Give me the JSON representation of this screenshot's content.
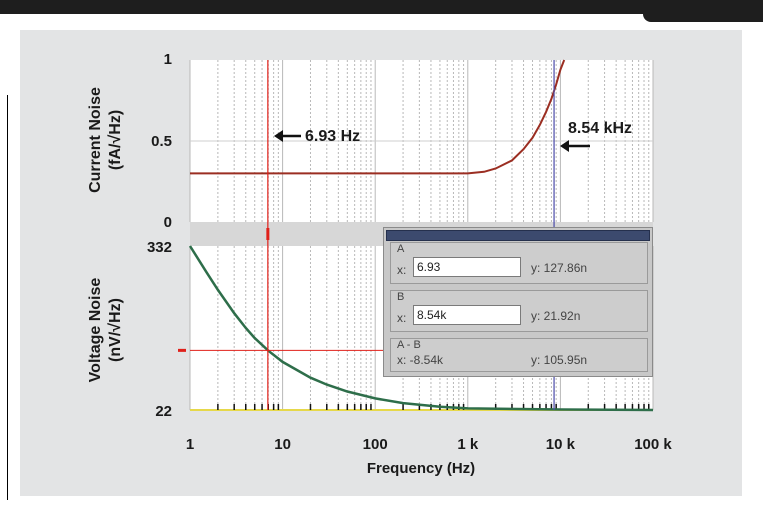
{
  "chart_data": [
    {
      "type": "line",
      "ylabel_line1": "Current Noise",
      "ylabel_line2": "(fA/√Hz)",
      "xscale": "log",
      "xlim": [
        1,
        100000
      ],
      "ylim": [
        0,
        1
      ],
      "yticks": [
        "0",
        "0.5",
        "1"
      ],
      "grid": true,
      "series": [
        {
          "color": "#9b2e22",
          "points": [
            [
              1,
              0.3
            ],
            [
              10,
              0.3
            ],
            [
              100,
              0.3
            ],
            [
              1000,
              0.3
            ],
            [
              1500,
              0.31
            ],
            [
              2000,
              0.33
            ],
            [
              3000,
              0.38
            ],
            [
              4000,
              0.45
            ],
            [
              5000,
              0.52
            ],
            [
              6000,
              0.6
            ],
            [
              7000,
              0.68
            ],
            [
              8000,
              0.76
            ],
            [
              9000,
              0.85
            ],
            [
              10000,
              0.94
            ],
            [
              11000,
              1.0
            ]
          ]
        }
      ]
    },
    {
      "type": "line",
      "ylabel_line1": "Voltage Noise",
      "ylabel_line2": "(nV/√Hz)",
      "xscale": "log",
      "xlim": [
        1,
        100000
      ],
      "ylim": [
        22,
        332
      ],
      "yticks": [
        "22",
        "332"
      ],
      "xlabel": "Frequency (Hz)",
      "xticks": [
        "1",
        "10",
        "100",
        "1 k",
        "10 k",
        "100 k"
      ],
      "grid": true,
      "series": [
        {
          "color": "#2e6e4a",
          "points": [
            [
              1,
              332
            ],
            [
              1.5,
              283
            ],
            [
              2,
              249
            ],
            [
              3,
              205
            ],
            [
              4,
              177
            ],
            [
              5,
              158
            ],
            [
              7,
              134
            ],
            [
              10,
              113
            ],
            [
              20,
              83
            ],
            [
              30,
              70
            ],
            [
              50,
              57
            ],
            [
              100,
              44
            ],
            [
              200,
              35
            ],
            [
              500,
              28
            ],
            [
              1000,
              25
            ],
            [
              10000,
              23
            ],
            [
              100000,
              22
            ]
          ]
        }
      ]
    }
  ],
  "cursors": {
    "a_label": "6.93 Hz",
    "a_freq": 6.93,
    "b_label": "8.54 kHz",
    "b_freq": 8540,
    "a_color": "#e0201a",
    "b_color": "#4a4aa8"
  },
  "cursor_window": {
    "a": {
      "name": "A",
      "x_label": "x:",
      "x_value": "6.93",
      "y_value": "y: 127.86n"
    },
    "b": {
      "name": "B",
      "x_label": "x:",
      "x_value": "8.54k",
      "y_value": "y: 21.92n"
    },
    "ab": {
      "name": "A - B",
      "x_value": "x: -8.54k",
      "y_value": "y: 105.95n"
    }
  }
}
